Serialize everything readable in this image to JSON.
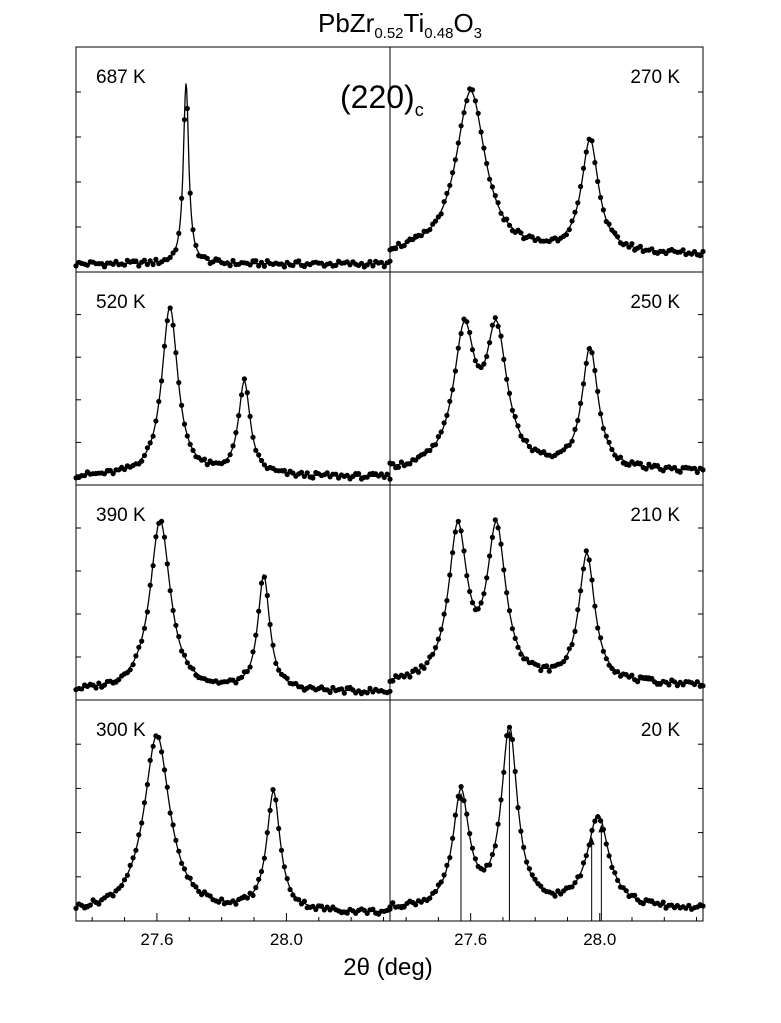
{
  "title": {
    "base": "PbZr",
    "sub1": "0.52",
    "mid": "Ti",
    "sub2": "0.48",
    "end": "O",
    "sub3": "3"
  },
  "reflection": {
    "base": "(220)",
    "sub": "c"
  },
  "x_axis": {
    "label": "2θ (deg)",
    "tick_labels": [
      "27.6",
      "28.0"
    ]
  },
  "colors": {
    "ink": "#000000",
    "background": "#ffffff"
  },
  "chart_data": [
    {
      "type": "scatter",
      "temperature": "687 K",
      "column": "left",
      "row": 0,
      "xlim": [
        27.35,
        28.32
      ],
      "peaks": [
        {
          "x": 27.69,
          "height": 1.0,
          "width": 0.01
        }
      ],
      "baseline": 0.0
    },
    {
      "type": "scatter",
      "temperature": "520 K",
      "column": "left",
      "row": 1,
      "xlim": [
        27.35,
        28.32
      ],
      "peaks": [
        {
          "x": 27.64,
          "height": 1.0,
          "width": 0.03
        },
        {
          "x": 27.87,
          "height": 0.55,
          "width": 0.022
        }
      ],
      "baseline": 0.0
    },
    {
      "type": "scatter",
      "temperature": "390 K",
      "column": "left",
      "row": 2,
      "xlim": [
        27.35,
        28.32
      ],
      "peaks": [
        {
          "x": 27.61,
          "height": 1.0,
          "width": 0.038
        },
        {
          "x": 27.93,
          "height": 0.67,
          "width": 0.022
        }
      ],
      "baseline": 0.0
    },
    {
      "type": "scatter",
      "temperature": "300 K",
      "column": "left",
      "row": 3,
      "xlim": [
        27.35,
        28.32
      ],
      "peaks": [
        {
          "x": 27.6,
          "height": 1.0,
          "width": 0.048
        },
        {
          "x": 27.96,
          "height": 0.67,
          "width": 0.025
        }
      ],
      "baseline": 0.0
    },
    {
      "type": "scatter",
      "temperature": "270 K",
      "column": "right",
      "row": 0,
      "xlim": [
        27.35,
        28.32
      ],
      "peaks": [
        {
          "x": 27.6,
          "height": 0.9,
          "width": 0.055
        },
        {
          "x": 27.97,
          "height": 0.62,
          "width": 0.032
        }
      ],
      "baseline": 0.05
    },
    {
      "type": "scatter",
      "temperature": "250 K",
      "column": "right",
      "row": 1,
      "xlim": [
        27.35,
        28.32
      ],
      "peaks": [
        {
          "x": 27.58,
          "height": 0.78,
          "width": 0.04
        },
        {
          "x": 27.68,
          "height": 0.78,
          "width": 0.04
        },
        {
          "x": 27.97,
          "height": 0.72,
          "width": 0.03
        }
      ],
      "baseline": 0.03
    },
    {
      "type": "scatter",
      "temperature": "210 K",
      "column": "right",
      "row": 2,
      "xlim": [
        27.35,
        28.32
      ],
      "peaks": [
        {
          "x": 27.56,
          "height": 0.88,
          "width": 0.035
        },
        {
          "x": 27.68,
          "height": 0.88,
          "width": 0.035
        },
        {
          "x": 27.96,
          "height": 0.75,
          "width": 0.03
        }
      ],
      "baseline": 0.04
    },
    {
      "type": "scatter",
      "temperature": "20 K",
      "column": "right",
      "row": 3,
      "xlim": [
        27.35,
        28.32
      ],
      "peaks": [
        {
          "x": 27.57,
          "height": 0.64,
          "width": 0.03
        },
        {
          "x": 27.72,
          "height": 1.0,
          "width": 0.03
        },
        {
          "x": 27.995,
          "height": 0.52,
          "width": 0.04
        }
      ],
      "baseline": 0.02,
      "markers": [
        27.57,
        27.72,
        27.975,
        28.005
      ]
    }
  ]
}
